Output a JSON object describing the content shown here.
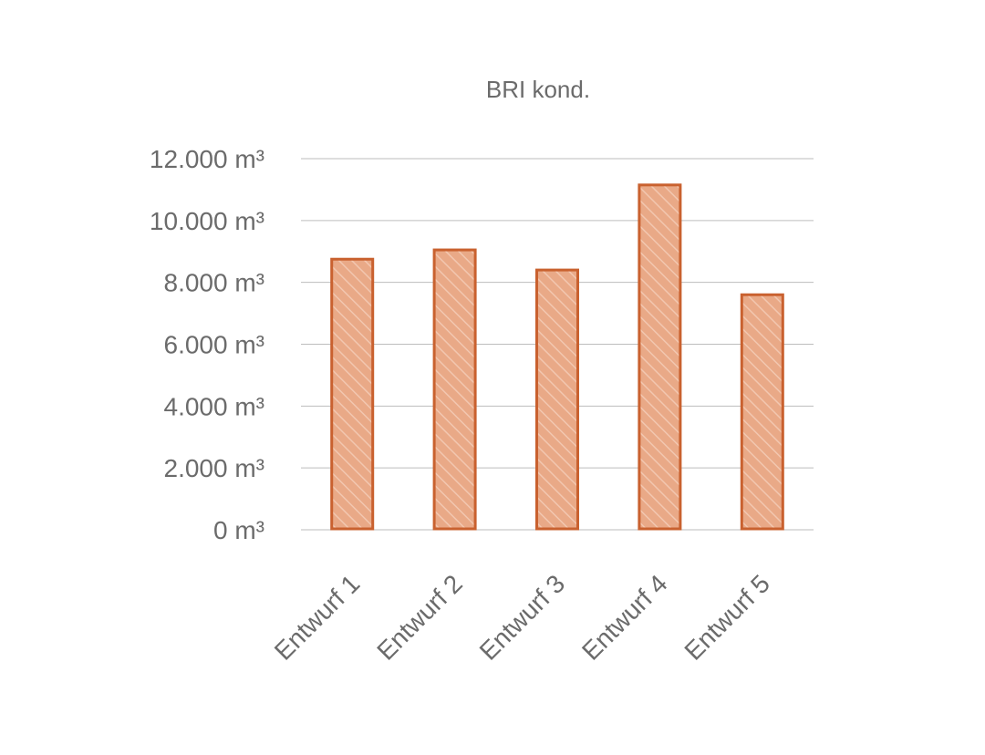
{
  "chart_data": {
    "type": "bar",
    "title": "BRI kond.",
    "categories": [
      "Entwurf 1",
      "Entwurf 2",
      "Entwurf 3",
      "Entwurf 4",
      "Entwurf 5"
    ],
    "values": [
      8750,
      9050,
      8400,
      11150,
      7600
    ],
    "unit": "m³",
    "ylim": [
      0,
      12000
    ],
    "yticks": [
      0,
      2000,
      4000,
      6000,
      8000,
      10000,
      12000
    ],
    "ytick_labels": [
      "0 m³",
      "2.000 m³",
      "4.000 m³",
      "6.000 m³",
      "8.000 m³",
      "10.000 m³",
      "12.000 m³"
    ],
    "grid": true,
    "legend": "none",
    "colors": {
      "bar_fill": "#e9a987",
      "bar_stroke": "#c9612f",
      "hatch": "#f2c7b0"
    }
  }
}
